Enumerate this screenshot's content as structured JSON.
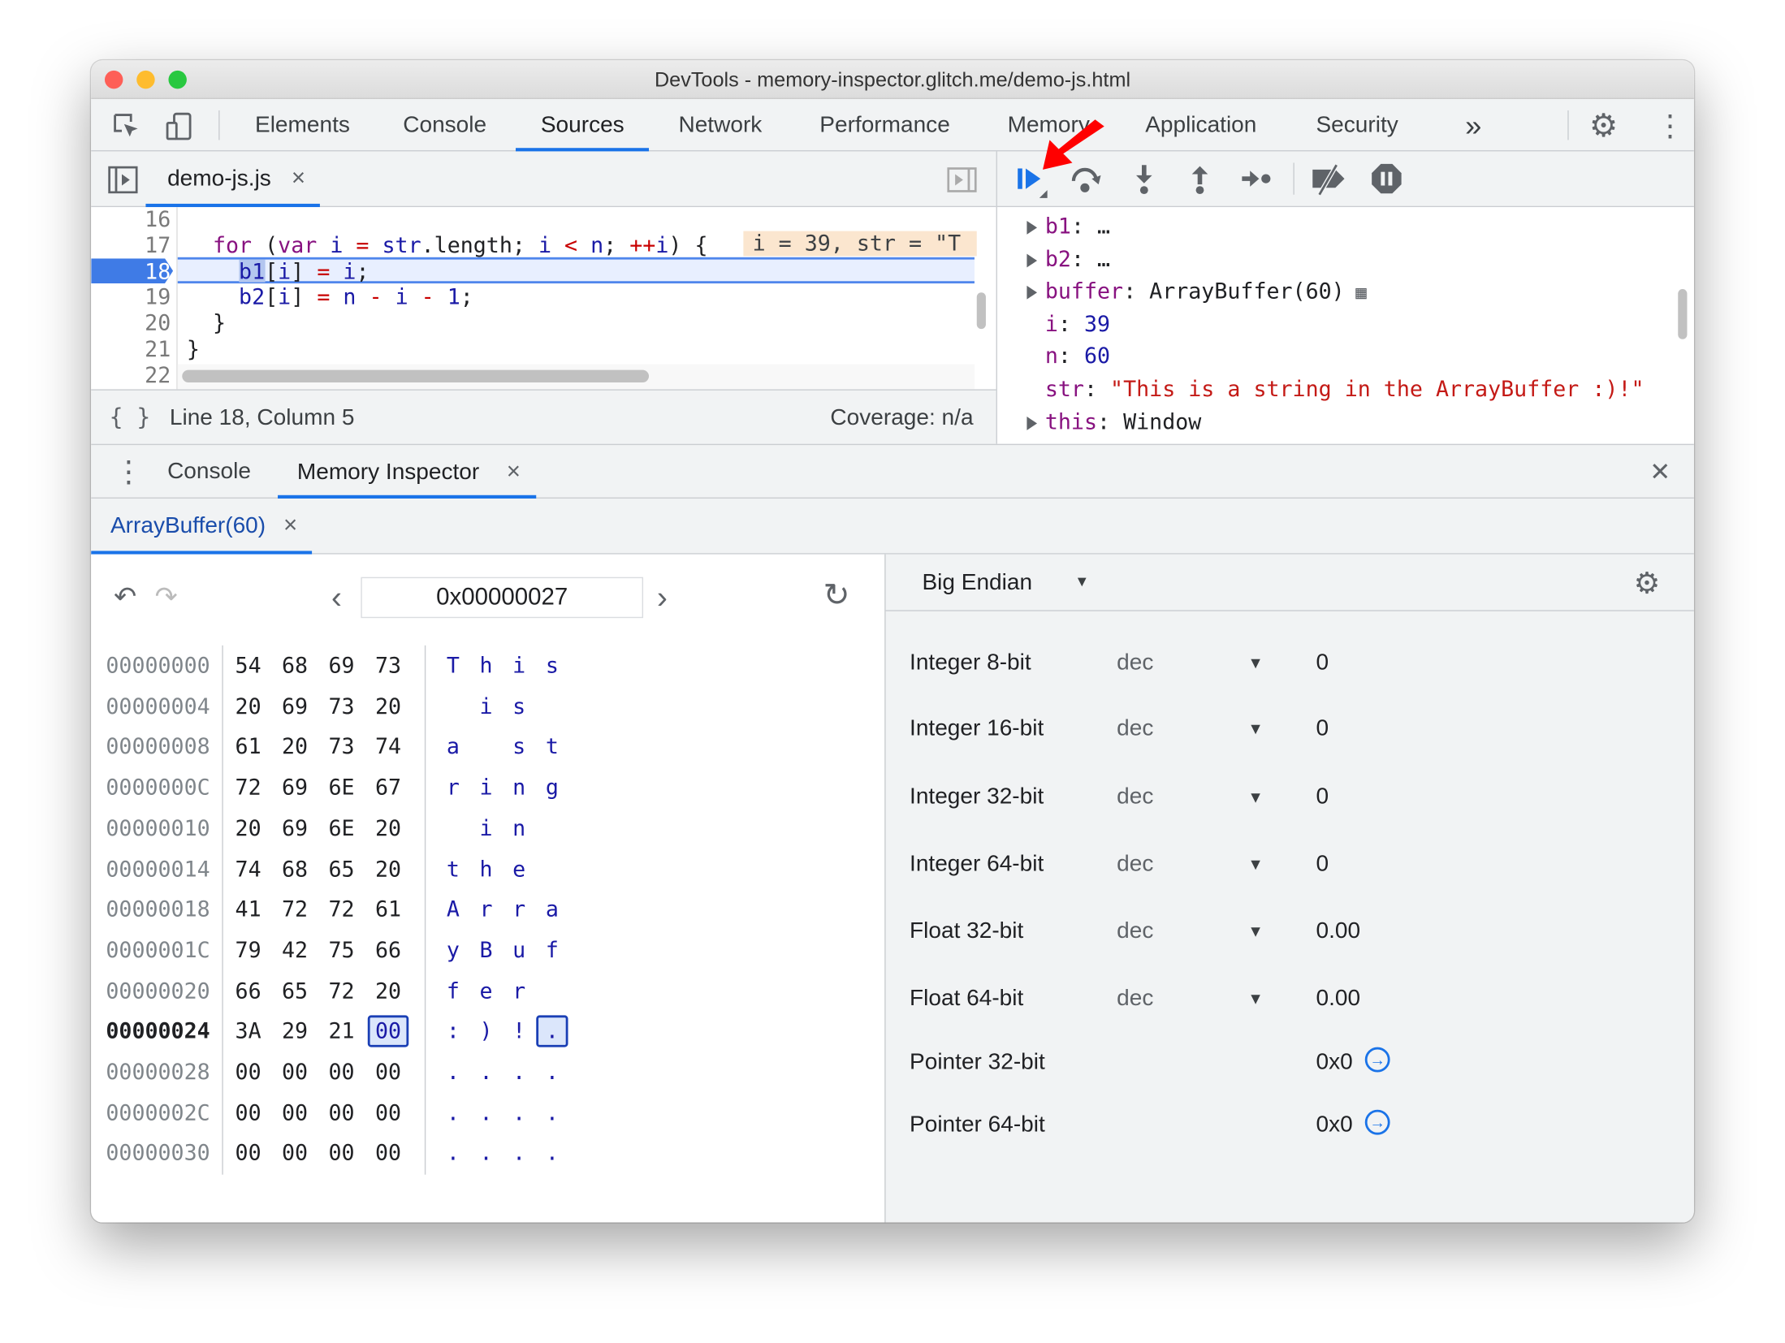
{
  "window": {
    "title": "DevTools - memory-inspector.glitch.me/demo-js.html"
  },
  "main_tabs": [
    {
      "label": "Elements"
    },
    {
      "label": "Console"
    },
    {
      "label": "Sources"
    },
    {
      "label": "Network"
    },
    {
      "label": "Performance"
    },
    {
      "label": "Memory"
    },
    {
      "label": "Application"
    },
    {
      "label": "Security"
    }
  ],
  "more_tabs": "»",
  "file_tab": {
    "label": "demo-js.js",
    "close": "×"
  },
  "code": {
    "lines": [
      {
        "n": "16",
        "tokens": []
      },
      {
        "n": "17",
        "tokens": [
          {
            "t": "  for",
            "c": "kw"
          },
          {
            "t": " (",
            "c": "pl"
          },
          {
            "t": "var",
            "c": "kw"
          },
          {
            "t": " i",
            "c": "id"
          },
          {
            "t": " =",
            "c": "op"
          },
          {
            "t": " str",
            "c": "id"
          },
          {
            "t": ".length; ",
            "c": "pl"
          },
          {
            "t": "i",
            "c": "id"
          },
          {
            "t": " <",
            "c": "op"
          },
          {
            "t": " n",
            "c": "id"
          },
          {
            "t": "; ",
            "c": "pl"
          },
          {
            "t": "++",
            "c": "op"
          },
          {
            "t": "i",
            "c": "id"
          },
          {
            "t": ") {",
            "c": "pl"
          }
        ]
      },
      {
        "n": "18",
        "tokens": [
          {
            "t": "    b1",
            "c": "id"
          },
          {
            "t": "[",
            "c": "pl"
          },
          {
            "t": "i",
            "c": "id"
          },
          {
            "t": "]",
            "c": "pl"
          },
          {
            "t": " =",
            "c": "op"
          },
          {
            "t": " i",
            "c": "id"
          },
          {
            "t": ";",
            "c": "pl"
          }
        ]
      },
      {
        "n": "19",
        "tokens": [
          {
            "t": "    b2",
            "c": "id"
          },
          {
            "t": "[",
            "c": "pl"
          },
          {
            "t": "i",
            "c": "id"
          },
          {
            "t": "]",
            "c": "pl"
          },
          {
            "t": " =",
            "c": "op"
          },
          {
            "t": " n",
            "c": "id"
          },
          {
            "t": " -",
            "c": "op"
          },
          {
            "t": " i",
            "c": "id"
          },
          {
            "t": " -",
            "c": "op"
          },
          {
            "t": " 1",
            "c": "id"
          },
          {
            "t": ";",
            "c": "pl"
          }
        ]
      },
      {
        "n": "20",
        "tokens": [
          {
            "t": "  }",
            "c": "pl"
          }
        ]
      },
      {
        "n": "21",
        "tokens": [
          {
            "t": "}",
            "c": "pl"
          }
        ]
      },
      {
        "n": "22",
        "tokens": []
      }
    ],
    "current_line": "18",
    "inline_value": "i = 39, str = \"T"
  },
  "status": {
    "position": "Line 18, Column 5",
    "coverage": "Coverage: n/a",
    "format_icon": "{ }"
  },
  "scope": [
    {
      "expandable": true,
      "name": "b1",
      "value": "…",
      "vc": "pl"
    },
    {
      "expandable": true,
      "name": "b2",
      "value": "…",
      "vc": "pl"
    },
    {
      "expandable": true,
      "name": "buffer",
      "value": "ArrayBuffer(60)",
      "vc": "pl",
      "icon": "memory-icon"
    },
    {
      "expandable": false,
      "name": "i",
      "value": "39",
      "vc": "id"
    },
    {
      "expandable": false,
      "name": "n",
      "value": "60",
      "vc": "id"
    },
    {
      "expandable": false,
      "name": "str",
      "value": "\"This is a string in the ArrayBuffer :)!\"",
      "vc": "str"
    },
    {
      "expandable": true,
      "name": "this",
      "value": "Window",
      "vc": "pl"
    }
  ],
  "drawer": {
    "tabs": [
      {
        "label": "Console"
      },
      {
        "label": "Memory Inspector",
        "close": "×"
      }
    ],
    "close": "✕"
  },
  "buffer_tab": {
    "label": "ArrayBuffer(60)",
    "close": "×"
  },
  "nav": {
    "address": "0x00000027",
    "prev": "‹",
    "next": "›"
  },
  "hex_rows": [
    {
      "addr": "00000000",
      "bytes": [
        "54",
        "68",
        "69",
        "73"
      ],
      "ascii": [
        "T",
        "h",
        "i",
        "s"
      ]
    },
    {
      "addr": "00000004",
      "bytes": [
        "20",
        "69",
        "73",
        "20"
      ],
      "ascii": [
        " ",
        "i",
        "s",
        " "
      ]
    },
    {
      "addr": "00000008",
      "bytes": [
        "61",
        "20",
        "73",
        "74"
      ],
      "ascii": [
        "a",
        " ",
        "s",
        "t"
      ]
    },
    {
      "addr": "0000000C",
      "bytes": [
        "72",
        "69",
        "6E",
        "67"
      ],
      "ascii": [
        "r",
        "i",
        "n",
        "g"
      ]
    },
    {
      "addr": "00000010",
      "bytes": [
        "20",
        "69",
        "6E",
        "20"
      ],
      "ascii": [
        " ",
        "i",
        "n",
        " "
      ]
    },
    {
      "addr": "00000014",
      "bytes": [
        "74",
        "68",
        "65",
        "20"
      ],
      "ascii": [
        "t",
        "h",
        "e",
        " "
      ]
    },
    {
      "addr": "00000018",
      "bytes": [
        "41",
        "72",
        "72",
        "61"
      ],
      "ascii": [
        "A",
        "r",
        "r",
        "a"
      ]
    },
    {
      "addr": "0000001C",
      "bytes": [
        "79",
        "42",
        "75",
        "66"
      ],
      "ascii": [
        "y",
        "B",
        "u",
        "f"
      ]
    },
    {
      "addr": "00000020",
      "bytes": [
        "66",
        "65",
        "72",
        "20"
      ],
      "ascii": [
        "f",
        "e",
        "r",
        " "
      ]
    },
    {
      "addr": "00000024",
      "bytes": [
        "3A",
        "29",
        "21",
        "00"
      ],
      "ascii": [
        ":",
        ")",
        "!",
        "."
      ],
      "current": true,
      "selected": 3
    },
    {
      "addr": "00000028",
      "bytes": [
        "00",
        "00",
        "00",
        "00"
      ],
      "ascii": [
        ".",
        ".",
        ".",
        "."
      ]
    },
    {
      "addr": "0000002C",
      "bytes": [
        "00",
        "00",
        "00",
        "00"
      ],
      "ascii": [
        ".",
        ".",
        ".",
        "."
      ]
    },
    {
      "addr": "00000030",
      "bytes": [
        "00",
        "00",
        "00",
        "00"
      ],
      "ascii": [
        ".",
        ".",
        ".",
        "."
      ]
    }
  ],
  "endianness": "Big Endian",
  "values": [
    {
      "label": "Integer 8-bit",
      "format": "dec",
      "value": "0"
    },
    {
      "label": "Integer 16-bit",
      "format": "dec",
      "value": "0"
    },
    {
      "label": "Integer 32-bit",
      "format": "dec",
      "value": "0"
    },
    {
      "label": "Integer 64-bit",
      "format": "dec",
      "value": "0"
    },
    {
      "label": "Float 32-bit",
      "format": "dec",
      "value": "0.00"
    },
    {
      "label": "Float 64-bit",
      "format": "dec",
      "value": "0.00"
    },
    {
      "label": "Pointer 32-bit",
      "value": "0x0",
      "jump": true
    },
    {
      "label": "Pointer 64-bit",
      "value": "0x0",
      "jump": true
    }
  ],
  "colors": {
    "accent": "#1a73e8",
    "arrow": "#ff0000",
    "string": "#c41a16",
    "keyword": "#881280",
    "number": "#1a1aa6"
  }
}
